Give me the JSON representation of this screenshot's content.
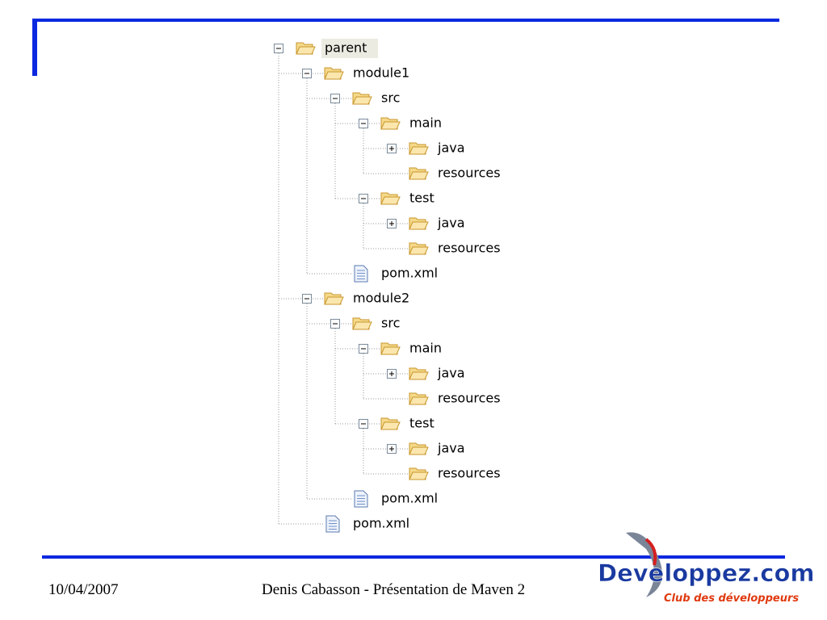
{
  "tree": {
    "nodes": [
      {
        "label": "parent",
        "kind": "folder",
        "expander": "minus",
        "selected": true,
        "children": [
          {
            "label": "module1",
            "kind": "folder",
            "expander": "minus",
            "children": [
              {
                "label": "src",
                "kind": "folder",
                "expander": "minus",
                "children": [
                  {
                    "label": "main",
                    "kind": "folder",
                    "expander": "minus",
                    "children": [
                      {
                        "label": "java",
                        "kind": "folder",
                        "expander": "plus"
                      },
                      {
                        "label": "resources",
                        "kind": "folder"
                      }
                    ]
                  },
                  {
                    "label": "test",
                    "kind": "folder",
                    "expander": "minus",
                    "children": [
                      {
                        "label": "java",
                        "kind": "folder",
                        "expander": "plus"
                      },
                      {
                        "label": "resources",
                        "kind": "folder"
                      }
                    ]
                  }
                ]
              },
              {
                "label": "pom.xml",
                "kind": "file"
              }
            ]
          },
          {
            "label": "module2",
            "kind": "folder",
            "expander": "minus",
            "children": [
              {
                "label": "src",
                "kind": "folder",
                "expander": "minus",
                "children": [
                  {
                    "label": "main",
                    "kind": "folder",
                    "expander": "minus",
                    "children": [
                      {
                        "label": "java",
                        "kind": "folder",
                        "expander": "plus"
                      },
                      {
                        "label": "resources",
                        "kind": "folder"
                      }
                    ]
                  },
                  {
                    "label": "test",
                    "kind": "folder",
                    "expander": "minus",
                    "children": [
                      {
                        "label": "java",
                        "kind": "folder",
                        "expander": "plus"
                      },
                      {
                        "label": "resources",
                        "kind": "folder"
                      }
                    ]
                  }
                ]
              },
              {
                "label": "pom.xml",
                "kind": "file"
              }
            ]
          },
          {
            "label": "pom.xml",
            "kind": "file"
          }
        ]
      }
    ]
  },
  "footer": {
    "date": "10/04/2007",
    "author": "Denis Cabasson - Présentation de Maven 2"
  },
  "logo": {
    "name": "Developpez.com",
    "tagline": "Club des développeurs"
  }
}
